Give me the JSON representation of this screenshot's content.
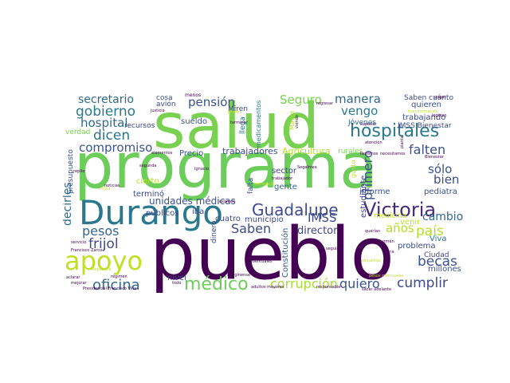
{
  "palette": {
    "dark_purple": "#440154",
    "purple": "#472c7a",
    "indigo": "#3b528b",
    "blue": "#31688e",
    "teal": "#21918c",
    "green_teal": "#35b779",
    "green": "#7ad151",
    "yellow_green": "#b5de2b",
    "yellow": "#fde725"
  },
  "words": [
    {
      "text": "programa",
      "color": "#6ccd5a"
    },
    {
      "text": "pueblo",
      "color": "#440154"
    },
    {
      "text": "salud",
      "color": "#7ad151"
    },
    {
      "text": "Durango",
      "color": "#2a788e"
    },
    {
      "text": "apoyo",
      "color": "#c2df23"
    },
    {
      "text": "Victoria",
      "color": "#472c7a"
    },
    {
      "text": "Guadalupe",
      "color": "#3e4a89"
    },
    {
      "text": "hospitales",
      "color": "#2a788e"
    },
    {
      "text": "médico",
      "color": "#6ccd5a"
    },
    {
      "text": "corrupción",
      "color": "#a8db34"
    },
    {
      "text": "quiero",
      "color": "#3b528b"
    },
    {
      "text": "cumplir",
      "color": "#3e4a89"
    },
    {
      "text": "oficina",
      "color": "#31688e"
    },
    {
      "text": "becas",
      "color": "#3b528b"
    },
    {
      "text": "país",
      "color": "#b5de2b"
    },
    {
      "text": "gobierno",
      "color": "#2a788e"
    },
    {
      "text": "hospital",
      "color": "#31688e"
    },
    {
      "text": "dicen",
      "color": "#2c728e"
    },
    {
      "text": "compromiso",
      "color": "#3b528b"
    },
    {
      "text": "pesos",
      "color": "#31688e"
    },
    {
      "text": "frijol",
      "color": "#3e4a89"
    },
    {
      "text": "secretario",
      "color": "#31688e"
    },
    {
      "text": "pensión",
      "color": "#3b528b"
    },
    {
      "text": "Seguro",
      "color": "#7ad151"
    },
    {
      "text": "manera",
      "color": "#31688e"
    },
    {
      "text": "vengo",
      "color": "#2a788e"
    },
    {
      "text": "falten",
      "color": "#3b528b"
    },
    {
      "text": "Saben",
      "color": "#3e4a89"
    },
    {
      "text": "cambio",
      "color": "#31688e"
    },
    {
      "text": "años",
      "color": "#b5de2b"
    },
    {
      "text": "primero",
      "color": "#3b528b"
    },
    {
      "text": "decirles",
      "color": "#31688e"
    },
    {
      "text": "bien",
      "color": "#3e4a89"
    },
    {
      "text": "sólo",
      "color": "#3b528b"
    },
    {
      "text": "IMSS",
      "color": "#3e4a89"
    },
    {
      "text": "director",
      "color": "#414487"
    },
    {
      "text": "unidades médicas",
      "color": "#3b528b"
    },
    {
      "text": "trabajadores",
      "color": "#3e4a89"
    },
    {
      "text": "Agricultura",
      "color": "#b5de2b"
    },
    {
      "text": "Saben cuánto",
      "color": "#3e4a89"
    },
    {
      "text": "quieren",
      "color": "#3b528b"
    },
    {
      "text": "trabajando",
      "color": "#3e4a89"
    },
    {
      "text": "IMSS Bienestar",
      "color": "#3e4a89"
    },
    {
      "text": "Jóvenes",
      "color": "#31688e"
    },
    {
      "text": "rurales",
      "color": "#7ad151"
    },
    {
      "text": "informe",
      "color": "#3b528b"
    },
    {
      "text": "pediatra",
      "color": "#3b528b"
    },
    {
      "text": "medicina",
      "color": "#c2df23"
    },
    {
      "text": "venir",
      "color": "#b5de2b"
    },
    {
      "text": "Viva",
      "color": "#2a788e"
    },
    {
      "text": "problema",
      "color": "#3e4a89"
    },
    {
      "text": "Ciudad",
      "color": "#414487"
    },
    {
      "text": "millones",
      "color": "#3b528b"
    },
    {
      "text": "nivel",
      "color": "#3e4a89"
    },
    {
      "text": "Constitución",
      "color": "#3b528b"
    },
    {
      "text": "estudiante",
      "color": "#414487"
    },
    {
      "text": "gente",
      "color": "#31688e"
    },
    {
      "text": "sector",
      "color": "#3e4a89"
    },
    {
      "text": "municipio",
      "color": "#3e4a89"
    },
    {
      "text": "cuatro",
      "color": "#3e4a89"
    },
    {
      "text": "falta",
      "color": "#3b528b"
    },
    {
      "text": "dinero",
      "color": "#3e4a89"
    },
    {
      "text": "terminó",
      "color": "#3e4a89"
    },
    {
      "text": "públicos",
      "color": "#3e4a89"
    },
    {
      "text": "iba",
      "color": "#3e4a89"
    },
    {
      "text": "cierto",
      "color": "#b5de2b"
    },
    {
      "text": "Precio",
      "color": "#3b528b"
    },
    {
      "text": "sueldo",
      "color": "#3b528b"
    },
    {
      "text": "avión",
      "color": "#3e4a89"
    },
    {
      "text": "cosa",
      "color": "#3b528b"
    },
    {
      "text": "recursos",
      "color": "#3e4a89"
    },
    {
      "text": "presupuesto",
      "color": "#3b528b"
    },
    {
      "text": "verdad",
      "color": "#7ad151"
    },
    {
      "text": "llega",
      "color": "#2a788e"
    },
    {
      "text": "Miren",
      "color": "#3e4a89"
    },
    {
      "text": "medicamentos",
      "color": "#2a788e"
    },
    {
      "text": "Mayor",
      "color": "#b5de2b"
    },
    {
      "text": "gusto",
      "color": "#c2df23"
    },
    {
      "text": "menos",
      "color": "#440154"
    },
    {
      "text": "justicia",
      "color": "#440154"
    },
    {
      "text": "terminar",
      "color": "#440154"
    },
    {
      "text": "viendo",
      "color": "#440154"
    },
    {
      "text": "regresar",
      "color": "#440154"
    },
    {
      "text": "transformación",
      "color": "#c2df23"
    },
    {
      "text": "superior",
      "color": "#440154"
    },
    {
      "text": "atención",
      "color": "#440154"
    },
    {
      "text": "llevamos",
      "color": "#440154"
    },
    {
      "text": "necesitamos",
      "color": "#440154"
    },
    {
      "text": "Segalmex",
      "color": "#440154"
    },
    {
      "text": "trabajador",
      "color": "#440154"
    },
    {
      "text": "entregado",
      "color": "#c2df23"
    },
    {
      "text": "Ignacio",
      "color": "#440154"
    },
    {
      "text": "elementos",
      "color": "#440154"
    },
    {
      "text": "segunda",
      "color": "#440154"
    },
    {
      "text": "repito",
      "color": "#440154"
    },
    {
      "text": "examen",
      "color": "#440154"
    },
    {
      "text": "imagínense",
      "color": "#440154"
    },
    {
      "text": "adultos mayores",
      "color": "#440154"
    },
    {
      "text": "responsable",
      "color": "#440154"
    },
    {
      "text": "eventuales",
      "color": "#440154"
    },
    {
      "text": "seguir",
      "color": "#440154"
    },
    {
      "text": "tierra",
      "color": "#440154"
    },
    {
      "text": "querían",
      "color": "#440154"
    },
    {
      "text": "Guzmán",
      "color": "#440154"
    },
    {
      "text": "pequeños",
      "color": "#c2df23"
    },
    {
      "text": "sacar adelante",
      "color": "#440154"
    },
    {
      "text": "aclarar",
      "color": "#440154"
    },
    {
      "text": "régimen",
      "color": "#440154"
    },
    {
      "text": "mejorar",
      "color": "#440154"
    },
    {
      "text": "todo",
      "color": "#440154"
    },
    {
      "text": "Presidencial Francisco Villa",
      "color": "#440154"
    },
    {
      "text": "servicio",
      "color": "#440154"
    },
    {
      "text": "Francisco Zarco",
      "color": "#440154"
    },
    {
      "text": "República",
      "color": "#c2df23"
    },
    {
      "text": "niños",
      "color": "#c2df23"
    },
    {
      "text": "noticias",
      "color": "#440154"
    },
    {
      "text": "primer",
      "color": "#c2df23"
    },
    {
      "text": "Bienestar",
      "color": "#440154"
    },
    {
      "text": "ingreso",
      "color": "#440154"
    },
    {
      "text": "pagar",
      "color": "#440154"
    },
    {
      "text": "planta",
      "color": "#440154"
    },
    {
      "text": "sector",
      "color": "#440154"
    },
    {
      "text": "pesos mensuales",
      "color": "#c2df23"
    }
  ]
}
